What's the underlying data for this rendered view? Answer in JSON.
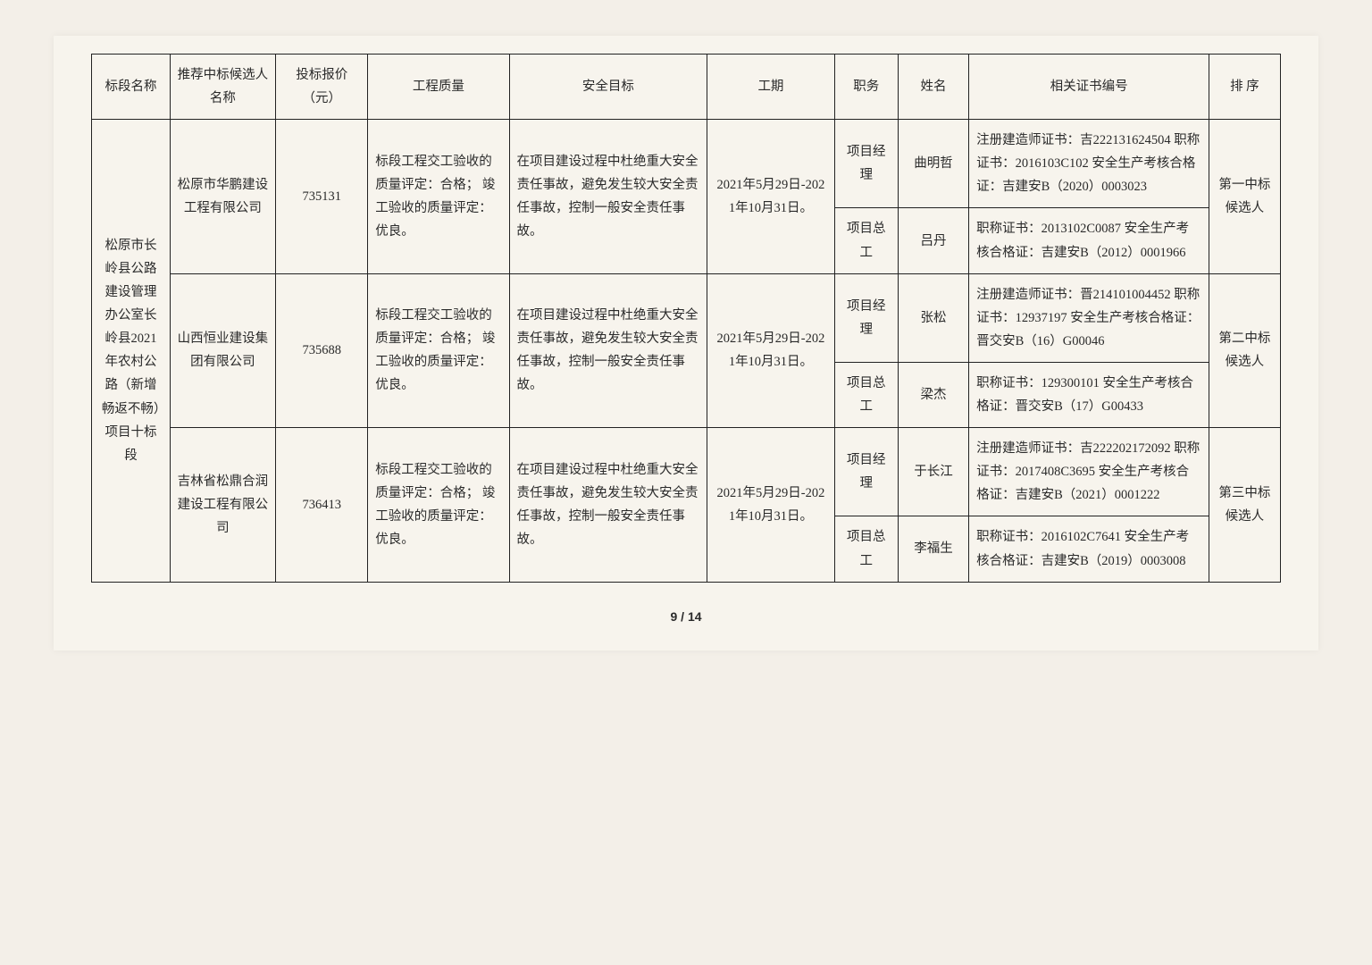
{
  "headers": {
    "section": "标段名称",
    "candidate": "推荐中标候选人名称",
    "price": "投标报价（元）",
    "quality": "工程质量",
    "safety": "安全目标",
    "period": "工期",
    "role": "职务",
    "name": "姓名",
    "cert": "相关证书编号",
    "rank": "排 序"
  },
  "section_name": "松原市长岭县公路建设管理办公室长岭县2021年农村公路（新增畅返不畅）项目十标段",
  "candidates": [
    {
      "company": "松原市华鹏建设工程有限公司",
      "price": "735131",
      "quality": "标段工程交工验收的质量评定：合格；\n竣工验收的质量评定：优良。",
      "safety": "在项目建设过程中杜绝重大安全责任事故，避免发生较大安全责任事故，控制一般安全责任事故。",
      "period": "2021年5月29日-2021年10月31日。",
      "rank": "第一中标候选人",
      "people": [
        {
          "role": "项目经理",
          "name": "曲明哲",
          "cert": "注册建造师证书：吉222131624504\n职称证书：2016103C102\n安全生产考核合格证：吉建安B（2020）0003023"
        },
        {
          "role": "项目总工",
          "name": "吕丹",
          "cert": "职称证书：2013102C0087\n安全生产考核合格证：吉建安B（2012）0001966"
        }
      ]
    },
    {
      "company": "山西恒业建设集团有限公司",
      "price": "735688",
      "quality": "标段工程交工验收的质量评定：合格；\n竣工验收的质量评定：优良。",
      "safety": "在项目建设过程中杜绝重大安全责任事故，避免发生较大安全责任事故，控制一般安全责任事故。",
      "period": "2021年5月29日-2021年10月31日。",
      "rank": "第二中标候选人",
      "people": [
        {
          "role": "项目经理",
          "name": "张松",
          "cert": "注册建造师证书：晋214101004452\n职称证书：12937197\n安全生产考核合格证：晋交安B（16）G00046"
        },
        {
          "role": "项目总工",
          "name": "梁杰",
          "cert": "职称证书：129300101\n安全生产考核合格证：晋交安B（17）G00433"
        }
      ]
    },
    {
      "company": "吉林省松鼎合润建设工程有限公司",
      "price": "736413",
      "quality": "标段工程交工验收的质量评定：合格；\n竣工验收的质量评定：优良。",
      "safety": "在项目建设过程中杜绝重大安全责任事故，避免发生较大安全责任事故，控制一般安全责任事故。",
      "period": "2021年5月29日-2021年10月31日。",
      "rank": "第三中标候选人",
      "people": [
        {
          "role": "项目经理",
          "name": "于长江",
          "cert": "注册建造师证书：吉222202172092\n职称证书：2017408C3695\n安全生产考核合格证：吉建安B（2021）0001222"
        },
        {
          "role": "项目总工",
          "name": "李福生",
          "cert": "职称证书：2016102C7641\n安全生产考核合格证：吉建安B（2019）0003008"
        }
      ]
    }
  ],
  "footer": "9 / 14"
}
